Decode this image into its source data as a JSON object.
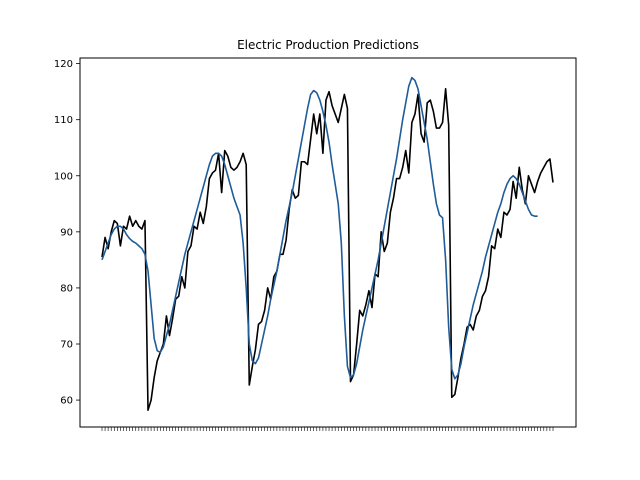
{
  "chart_data": {
    "type": "line",
    "title": "Electric Production Predictions",
    "xlabel": "",
    "ylabel": "",
    "ylim": [
      55.2,
      121
    ],
    "y_ticks": [
      60,
      70,
      80,
      90,
      100,
      110,
      120
    ],
    "x_tick_labels_note": "",
    "grid": false,
    "series": [
      {
        "color": "#000000",
        "values": [
          85.5,
          89.0,
          87.0,
          90.0,
          92.0,
          91.5,
          87.5,
          91.0,
          90.5,
          92.8,
          91.0,
          92.0,
          91.0,
          90.5,
          92.0,
          58.2,
          60.0,
          64.0,
          67.0,
          68.5,
          70.0,
          75.0,
          71.5,
          74.5,
          78.0,
          78.5,
          82.0,
          80.0,
          86.5,
          87.5,
          91.0,
          90.5,
          93.5,
          91.5,
          94.5,
          99.5,
          100.5,
          101.0,
          104.0,
          97.0,
          104.5,
          103.5,
          101.5,
          101.0,
          101.5,
          102.5,
          104.0,
          102.0,
          62.7,
          66.0,
          69.0,
          73.5,
          74.0,
          76.0,
          80.0,
          78.0,
          82.0,
          83.0,
          86.0,
          86.0,
          88.5,
          94.0,
          97.5,
          96.0,
          96.5,
          102.5,
          102.5,
          102.0,
          106.5,
          111.0,
          107.5,
          111.0,
          104.0,
          113.5,
          115.0,
          112.5,
          111.0,
          109.5,
          112.0,
          114.5,
          112.0,
          63.3,
          64.5,
          70.0,
          76.0,
          75.0,
          77.0,
          79.5,
          76.5,
          82.5,
          82.0,
          90.0,
          86.5,
          88.0,
          93.5,
          96.0,
          99.5,
          99.5,
          101.5,
          104.5,
          100.5,
          109.5,
          111.0,
          114.5,
          107.5,
          106.0,
          113.0,
          113.5,
          111.5,
          108.5,
          108.5,
          109.5,
          115.5,
          109.0,
          60.5,
          61.0,
          64.0,
          67.5,
          70.0,
          73.0,
          73.5,
          72.5,
          75.0,
          76.0,
          78.5,
          79.5,
          82.0,
          87.5,
          87.0,
          90.5,
          89.0,
          93.5,
          93.0,
          94.0,
          99.0,
          96.0,
          101.5,
          97.5,
          95.0,
          100.0,
          98.5,
          97.0,
          99.0,
          100.5,
          101.5,
          102.5,
          103.0,
          98.8
        ]
      },
      {
        "color": "#1f5c99",
        "values": [
          85.0,
          86.5,
          88.0,
          89.5,
          90.5,
          91.0,
          91.0,
          90.5,
          89.5,
          88.8,
          88.3,
          88.0,
          87.5,
          87.0,
          86.0,
          83.0,
          77.0,
          71.0,
          68.8,
          68.5,
          69.5,
          71.5,
          73.5,
          76.0,
          78.5,
          81.0,
          83.5,
          86.0,
          88.0,
          90.0,
          92.0,
          94.0,
          96.0,
          98.0,
          100.0,
          102.0,
          103.5,
          104.0,
          104.0,
          103.5,
          102.0,
          100.0,
          98.0,
          96.0,
          94.5,
          93.0,
          88.0,
          80.0,
          70.0,
          67.0,
          66.5,
          67.5,
          70.0,
          72.5,
          75.0,
          78.0,
          80.5,
          83.0,
          86.0,
          89.0,
          92.0,
          94.5,
          97.0,
          100.0,
          103.0,
          106.0,
          109.0,
          112.0,
          114.5,
          115.2,
          114.8,
          113.5,
          111.5,
          109.0,
          106.0,
          102.0,
          98.5,
          95.0,
          88.0,
          75.0,
          66.0,
          64.0,
          64.5,
          66.5,
          69.5,
          72.5,
          75.0,
          77.5,
          80.0,
          82.5,
          85.0,
          88.0,
          91.0,
          94.0,
          97.0,
          100.0,
          103.0,
          106.5,
          110.0,
          113.0,
          116.0,
          117.5,
          117.0,
          115.5,
          112.5,
          109.5,
          106.5,
          102.5,
          98.5,
          95.0,
          93.0,
          92.5,
          85.0,
          73.0,
          65.5,
          63.8,
          64.5,
          66.5,
          69.5,
          72.0,
          74.5,
          77.0,
          79.0,
          81.0,
          83.0,
          85.5,
          87.5,
          89.5,
          91.5,
          93.5,
          95.0,
          97.0,
          98.5,
          99.5,
          100.0,
          99.5,
          98.5,
          97.0,
          95.5,
          94.0,
          93.0,
          92.8,
          92.8
        ]
      }
    ]
  }
}
